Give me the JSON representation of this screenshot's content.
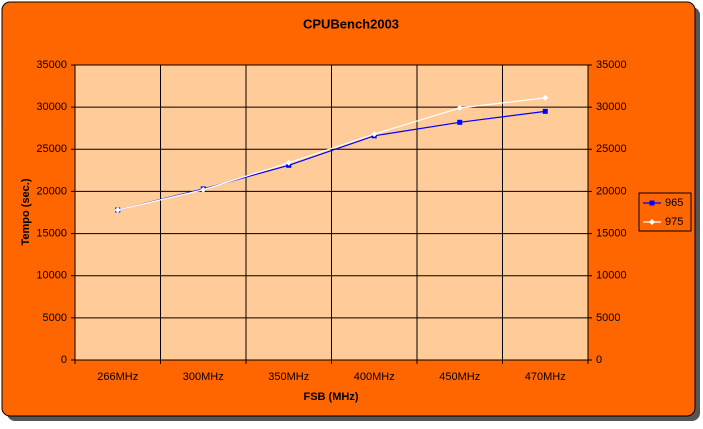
{
  "chart_data": {
    "type": "line",
    "title": "CPUBench2003",
    "x_label": "FSB (MHz)",
    "y_label": "Tempo (sec.)",
    "categories": [
      "266MHz",
      "300MHz",
      "350MHz",
      "400MHz",
      "450MHz",
      "470MHz"
    ],
    "series": [
      {
        "name": "965",
        "color": "#0000ff",
        "values": [
          17800,
          20300,
          23100,
          26600,
          28200,
          29500
        ]
      },
      {
        "name": "975",
        "color": "#ffffff",
        "values": [
          17800,
          20200,
          23400,
          26800,
          29900,
          31100
        ]
      }
    ],
    "ylim": [
      0,
      35000
    ],
    "yticks": [
      0,
      5000,
      10000,
      15000,
      20000,
      25000,
      30000,
      35000
    ],
    "y2lim": [
      0,
      35000
    ],
    "y2ticks": [
      0,
      5000,
      10000,
      15000,
      20000,
      25000,
      30000,
      35000
    ],
    "grid": true,
    "legend": "right"
  }
}
